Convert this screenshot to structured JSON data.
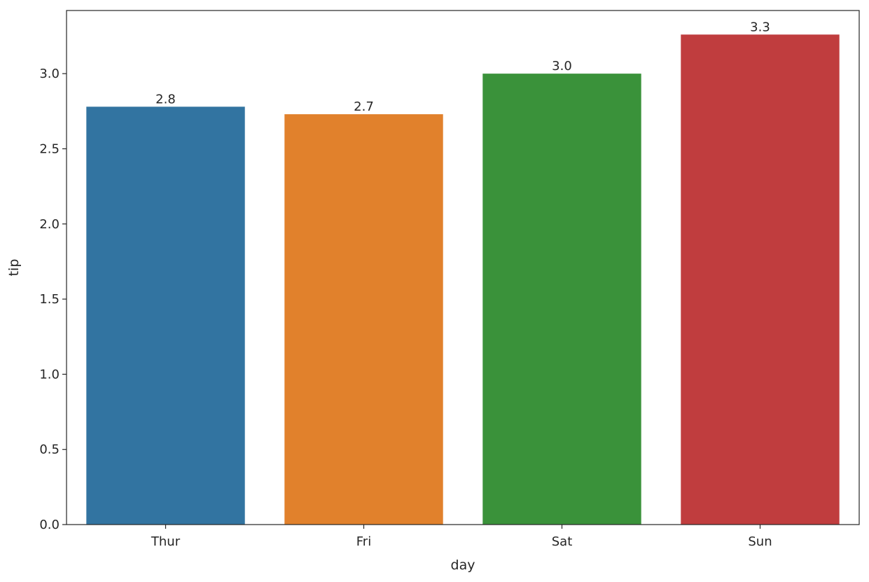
{
  "chart_data": {
    "type": "bar",
    "xlabel": "day",
    "ylabel": "tip",
    "categories": [
      "Thur",
      "Fri",
      "Sat",
      "Sun"
    ],
    "values": [
      2.78,
      2.73,
      3.0,
      3.26
    ],
    "data_labels": [
      "2.8",
      "2.7",
      "3.0",
      "3.3"
    ],
    "colors": [
      "#3274a1",
      "#e1812c",
      "#3a923a",
      "#c03d3e"
    ],
    "yticks": [
      0.0,
      0.5,
      1.0,
      1.5,
      2.0,
      2.5,
      3.0
    ],
    "ytick_labels": [
      "0.0",
      "0.5",
      "1.0",
      "1.5",
      "2.0",
      "2.5",
      "3.0"
    ],
    "ylim": [
      0,
      3.42
    ],
    "grid": false,
    "legend": false
  }
}
